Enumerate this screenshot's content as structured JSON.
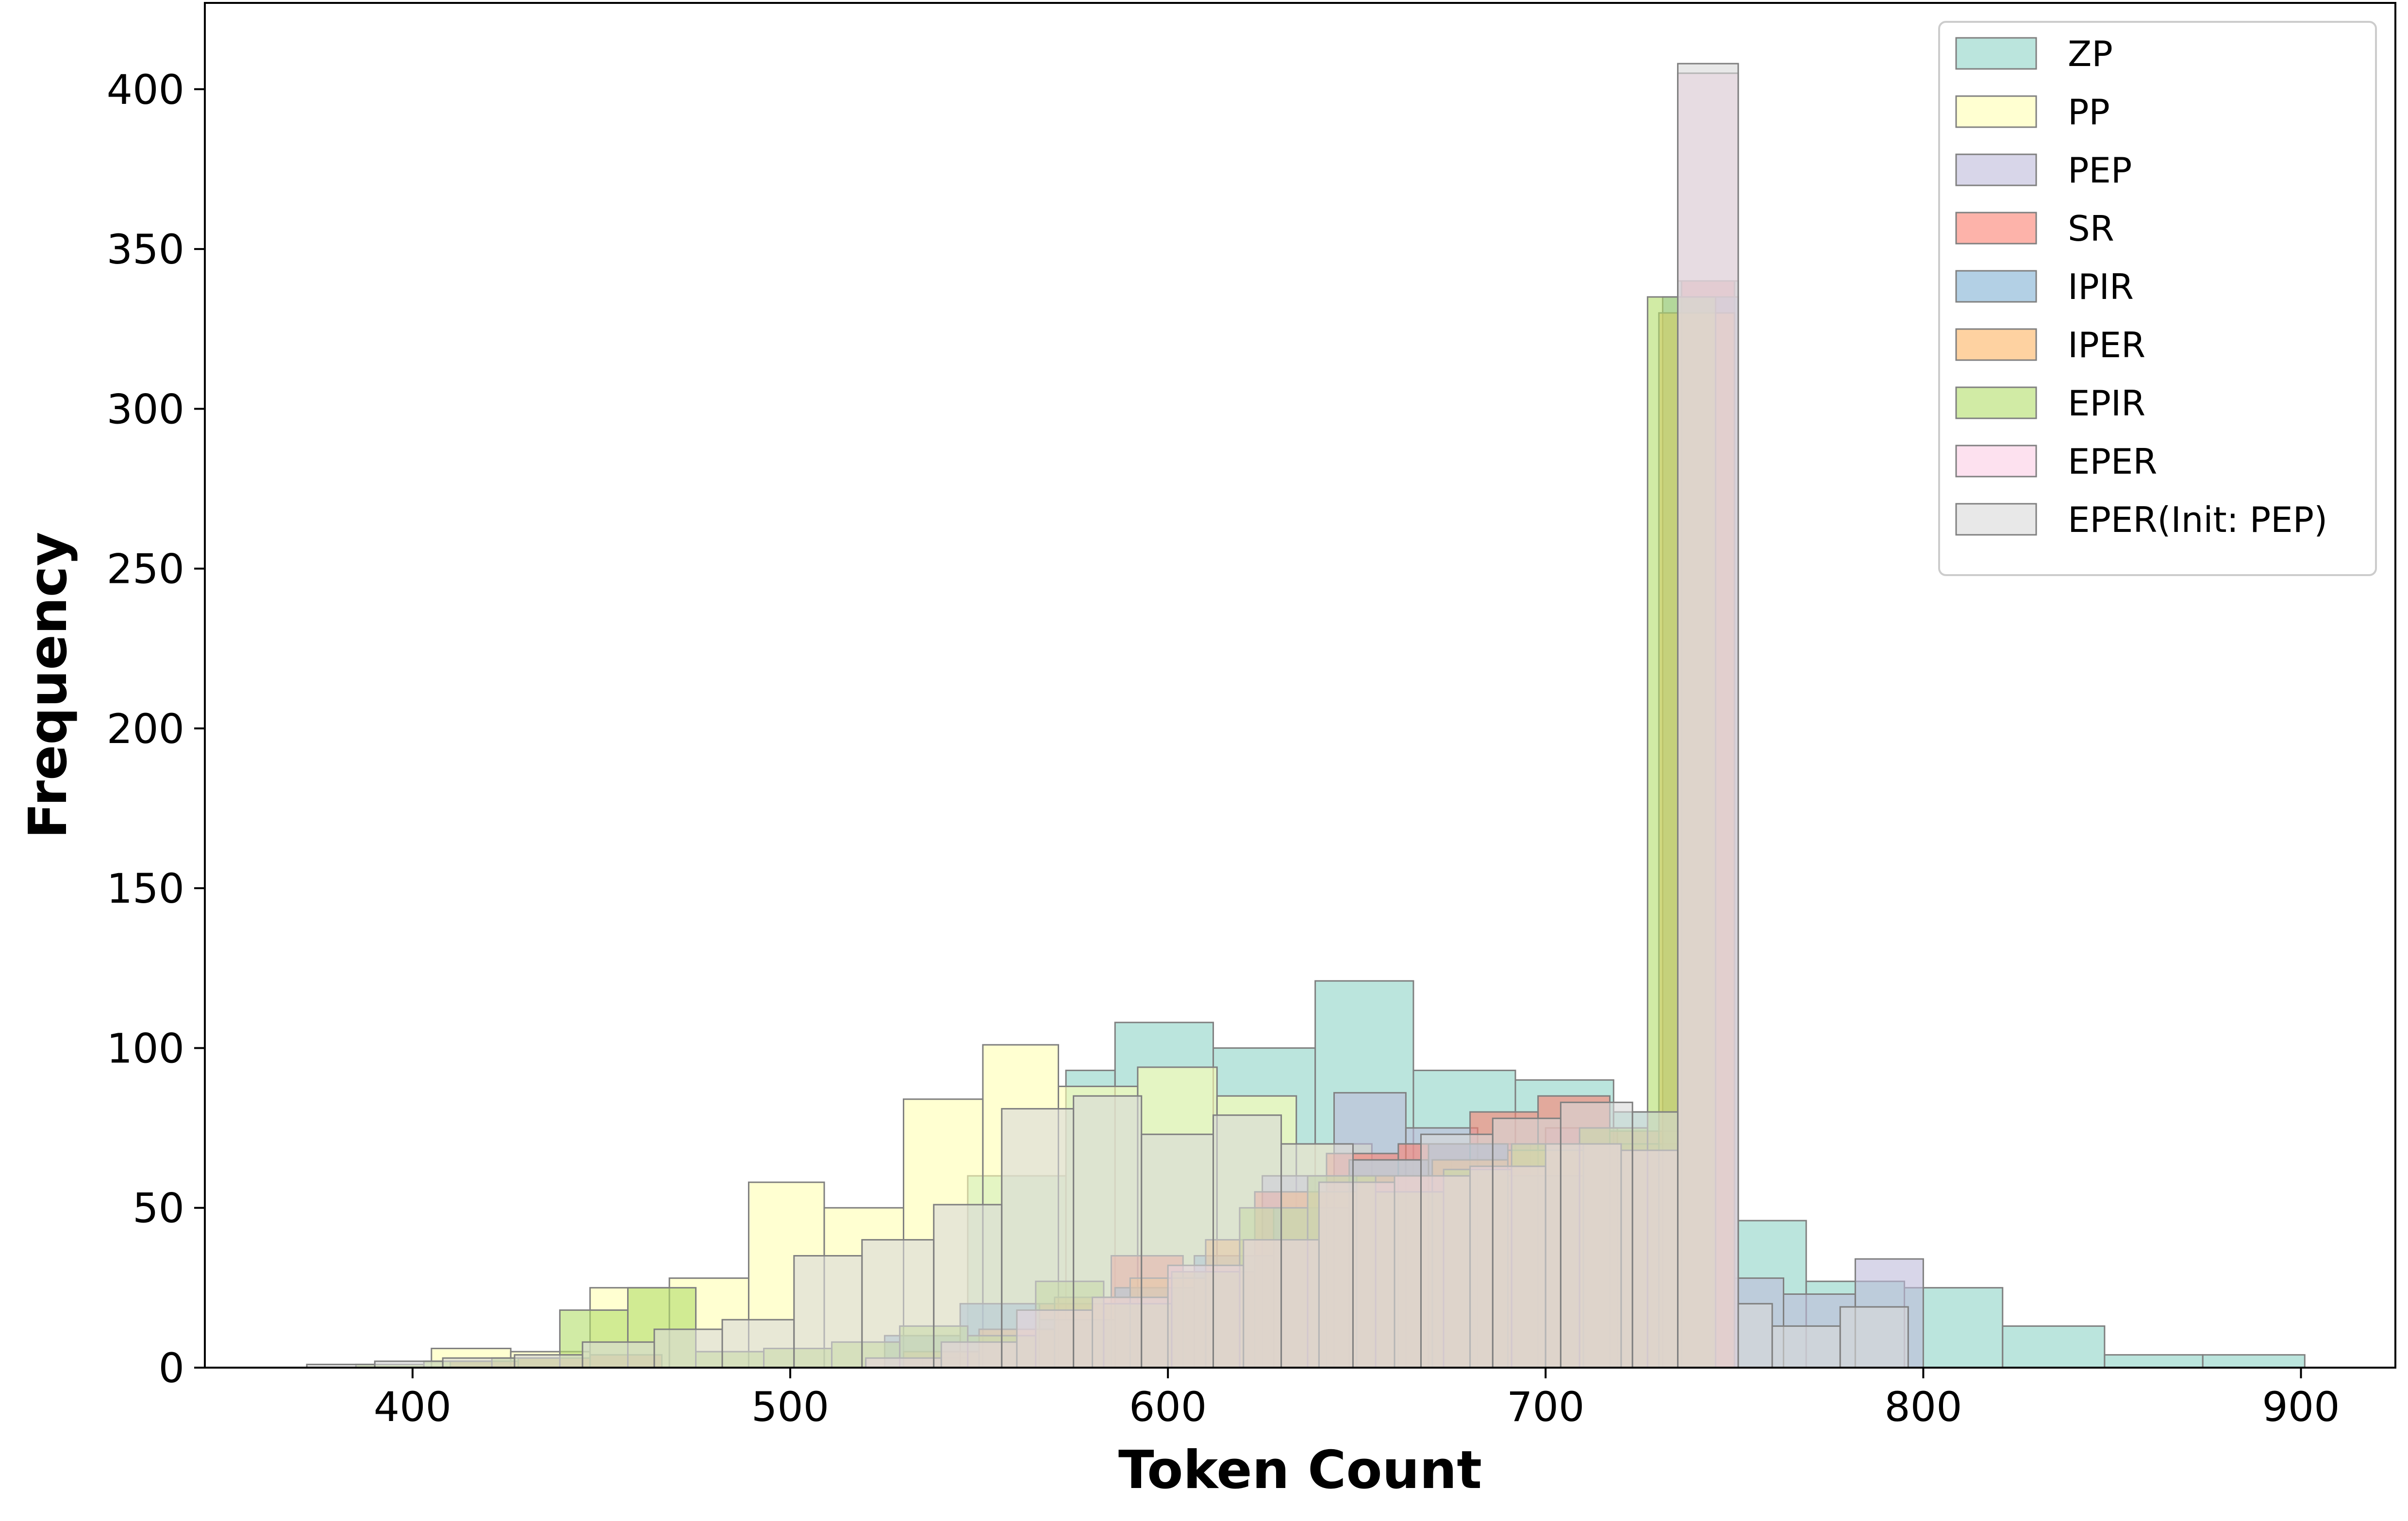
{
  "chart_data": {
    "type": "bar",
    "subtype": "overlapping-histogram",
    "title": "",
    "xlabel": "Token Count",
    "ylabel": "Frequency",
    "xlim": [
      345,
      925
    ],
    "ylim": [
      0,
      427
    ],
    "xticks": [
      400,
      500,
      600,
      700,
      800,
      900
    ],
    "yticks": [
      0,
      50,
      100,
      150,
      200,
      250,
      300,
      350,
      400
    ],
    "grid": false,
    "legend_position": "top-right",
    "series": [
      {
        "name": "ZP",
        "color": "#8dd3c7",
        "bins": [
          [
            535,
            547,
            3
          ],
          [
            547,
            573,
            60
          ],
          [
            573,
            586,
            93
          ],
          [
            586,
            612,
            108
          ],
          [
            612,
            639,
            100
          ],
          [
            639,
            665,
            121
          ],
          [
            665,
            692,
            93
          ],
          [
            692,
            718,
            90
          ],
          [
            718,
            735,
            80
          ],
          [
            735,
            751,
            340
          ],
          [
            751,
            769,
            46
          ],
          [
            769,
            795,
            27
          ],
          [
            795,
            821,
            25
          ],
          [
            821,
            848,
            13
          ],
          [
            848,
            874,
            4
          ],
          [
            874,
            901,
            4
          ]
        ]
      },
      {
        "name": "PP",
        "color": "#ffffb3",
        "bins": [
          [
            405,
            426,
            6
          ],
          [
            426,
            447,
            5
          ],
          [
            447,
            468,
            25
          ],
          [
            468,
            489,
            28
          ],
          [
            489,
            509,
            58
          ],
          [
            509,
            530,
            50
          ],
          [
            530,
            551,
            84
          ],
          [
            551,
            571,
            101
          ],
          [
            571,
            592,
            88
          ],
          [
            592,
            613,
            94
          ],
          [
            613,
            634,
            85
          ],
          [
            634,
            654,
            70
          ],
          [
            654,
            675,
            65
          ],
          [
            675,
            696,
            60
          ],
          [
            696,
            717,
            70
          ],
          [
            717,
            735,
            68
          ],
          [
            735,
            750,
            330
          ]
        ]
      },
      {
        "name": "PEP",
        "color": "#bebada",
        "bins": [
          [
            625,
            644,
            60
          ],
          [
            644,
            663,
            86
          ],
          [
            663,
            682,
            75
          ],
          [
            682,
            700,
            70
          ],
          [
            700,
            719,
            75
          ],
          [
            719,
            736,
            70
          ],
          [
            736,
            750,
            340
          ],
          [
            750,
            763,
            28
          ],
          [
            763,
            782,
            23
          ],
          [
            782,
            800,
            34
          ]
        ]
      },
      {
        "name": "SR",
        "color": "#fb8072",
        "bins": [
          [
            410,
            428,
            2
          ],
          [
            428,
            447,
            3
          ],
          [
            447,
            466,
            4
          ],
          [
            566,
            585,
            20
          ],
          [
            585,
            604,
            35
          ],
          [
            604,
            623,
            30
          ],
          [
            623,
            642,
            55
          ],
          [
            642,
            661,
            67
          ],
          [
            661,
            680,
            70
          ],
          [
            680,
            698,
            80
          ],
          [
            698,
            717,
            85
          ],
          [
            717,
            736,
            74
          ],
          [
            736,
            750,
            340
          ]
        ]
      },
      {
        "name": "IPIR",
        "color": "#80b1d3",
        "bins": [
          [
            525,
            545,
            10
          ],
          [
            545,
            566,
            20
          ],
          [
            566,
            586,
            15
          ],
          [
            586,
            607,
            25
          ],
          [
            607,
            628,
            35
          ],
          [
            628,
            648,
            50
          ],
          [
            648,
            669,
            65
          ],
          [
            669,
            690,
            70
          ],
          [
            690,
            710,
            60
          ],
          [
            710,
            731,
            70
          ],
          [
            731,
            751,
            335
          ]
        ]
      },
      {
        "name": "IPER",
        "color": "#fdb462",
        "bins": [
          [
            530,
            550,
            5
          ],
          [
            550,
            570,
            12
          ],
          [
            570,
            590,
            22
          ],
          [
            590,
            610,
            28
          ],
          [
            610,
            630,
            40
          ],
          [
            630,
            650,
            55
          ],
          [
            650,
            670,
            60
          ],
          [
            670,
            690,
            65
          ],
          [
            690,
            710,
            68
          ],
          [
            710,
            730,
            70
          ],
          [
            730,
            750,
            330
          ]
        ]
      },
      {
        "name": "EPIR",
        "color": "#b3de69",
        "bins": [
          [
            385,
            403,
            1
          ],
          [
            403,
            421,
            2
          ],
          [
            421,
            439,
            3
          ],
          [
            439,
            457,
            18
          ],
          [
            457,
            475,
            25
          ],
          [
            475,
            493,
            5
          ],
          [
            493,
            511,
            6
          ],
          [
            511,
            529,
            8
          ],
          [
            529,
            547,
            13
          ],
          [
            547,
            565,
            10
          ],
          [
            565,
            583,
            27
          ],
          [
            583,
            601,
            20
          ],
          [
            601,
            619,
            30
          ],
          [
            619,
            637,
            50
          ],
          [
            637,
            655,
            60
          ],
          [
            655,
            673,
            55
          ],
          [
            673,
            691,
            62
          ],
          [
            691,
            709,
            70
          ],
          [
            709,
            727,
            75
          ],
          [
            727,
            745,
            335
          ]
        ]
      },
      {
        "name": "EPER",
        "color": "#fccde5",
        "bins": [
          [
            520,
            540,
            3
          ],
          [
            540,
            560,
            8
          ],
          [
            560,
            580,
            18
          ],
          [
            580,
            600,
            22
          ],
          [
            600,
            620,
            32
          ],
          [
            620,
            640,
            40
          ],
          [
            640,
            660,
            58
          ],
          [
            660,
            680,
            60
          ],
          [
            680,
            700,
            63
          ],
          [
            700,
            720,
            70
          ],
          [
            720,
            735,
            68
          ],
          [
            735,
            751,
            405
          ]
        ]
      },
      {
        "name": "EPER(Init: PEP)",
        "color": "#d9d9d9",
        "bins": [
          [
            372,
            390,
            1
          ],
          [
            390,
            408,
            2
          ],
          [
            408,
            427,
            3
          ],
          [
            427,
            445,
            4
          ],
          [
            445,
            464,
            8
          ],
          [
            464,
            482,
            12
          ],
          [
            482,
            501,
            15
          ],
          [
            501,
            519,
            35
          ],
          [
            519,
            538,
            40
          ],
          [
            538,
            556,
            51
          ],
          [
            556,
            575,
            81
          ],
          [
            575,
            593,
            85
          ],
          [
            593,
            612,
            73
          ],
          [
            612,
            630,
            79
          ],
          [
            630,
            649,
            70
          ],
          [
            649,
            667,
            65
          ],
          [
            667,
            686,
            73
          ],
          [
            686,
            704,
            78
          ],
          [
            704,
            723,
            83
          ],
          [
            723,
            735,
            80
          ],
          [
            735,
            751,
            408
          ],
          [
            751,
            760,
            20
          ],
          [
            760,
            778,
            13
          ],
          [
            778,
            796,
            19
          ]
        ]
      }
    ]
  }
}
